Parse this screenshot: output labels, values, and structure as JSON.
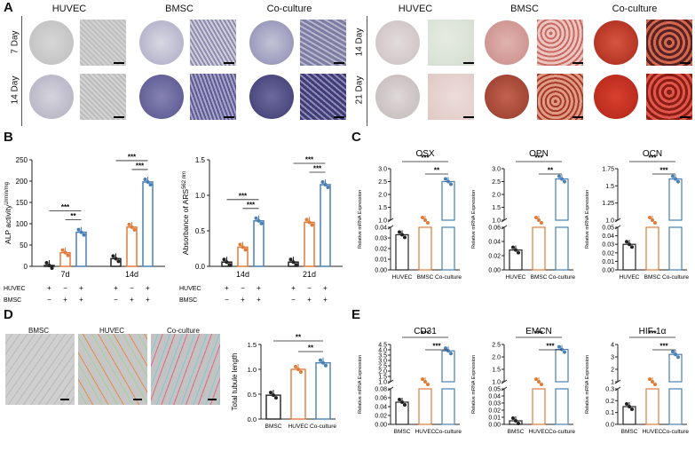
{
  "panel_letters": {
    "a": "A",
    "b": "B",
    "c": "C",
    "d": "D",
    "e": "E"
  },
  "panel_a": {
    "alp_columns": [
      "HUVEC",
      "BMSC",
      "Co-culture"
    ],
    "ars_columns": [
      "HUVEC",
      "BMSC",
      "Co-culture"
    ],
    "alp_rows": [
      "7 Day",
      "14 Day"
    ],
    "ars_rows": [
      "14 Day",
      "21 Day"
    ]
  },
  "panel_d": {
    "image_labels": [
      "BMSC",
      "HUVEC",
      "Co-culture"
    ]
  },
  "colors": {
    "huvec": "#222222",
    "bmsc": "#e07b3a",
    "coculture": "#4a7fb5",
    "alp_stain": "#4b4a8a",
    "ars_stain": "#c0392b"
  },
  "chart_data": [
    {
      "id": "alp",
      "type": "bar",
      "ylabel": "ALP activity",
      "ylabel_sup": "U/min/mg",
      "yticks": [
        "0",
        "50",
        "100",
        "150",
        "200",
        "250"
      ],
      "ylim": [
        0,
        250
      ],
      "groups": [
        "7d",
        "14d"
      ],
      "series": [
        {
          "values": [
            2,
            18
          ]
        },
        {
          "values": [
            32,
            92
          ]
        },
        {
          "values": [
            80,
            198
          ]
        }
      ],
      "significance": [
        {
          "group": 0,
          "pair": [
            0,
            2
          ],
          "label": "***"
        },
        {
          "group": 0,
          "pair": [
            1,
            2
          ],
          "label": "**"
        },
        {
          "group": 1,
          "pair": [
            0,
            2
          ],
          "label": "***"
        },
        {
          "group": 1,
          "pair": [
            1,
            2
          ],
          "label": "***"
        }
      ],
      "condition_rows": [
        {
          "label": "HUVEC",
          "marks": [
            "+",
            "−",
            "+",
            "+",
            "−",
            "+"
          ]
        },
        {
          "label": "BMSC",
          "marks": [
            "−",
            "+",
            "+",
            "−",
            "+",
            "+"
          ]
        }
      ]
    },
    {
      "id": "ars",
      "type": "bar",
      "ylabel": "Absorbance of ARS",
      "ylabel_sup": "562 nm",
      "yticks": [
        "0.0",
        "0.5",
        "1.0",
        "1.5"
      ],
      "ylim": [
        0,
        1.5
      ],
      "groups": [
        "14d",
        "21d"
      ],
      "series": [
        {
          "values": [
            0.06,
            0.06
          ]
        },
        {
          "values": [
            0.27,
            0.62
          ]
        },
        {
          "values": [
            0.64,
            1.15
          ]
        }
      ],
      "significance": [
        {
          "group": 0,
          "pair": [
            0,
            2
          ],
          "label": "***"
        },
        {
          "group": 0,
          "pair": [
            1,
            2
          ],
          "label": "***"
        },
        {
          "group": 1,
          "pair": [
            0,
            2
          ],
          "label": "***"
        },
        {
          "group": 1,
          "pair": [
            1,
            2
          ],
          "label": "***"
        }
      ],
      "condition_rows": [
        {
          "label": "HUVEC",
          "marks": [
            "+",
            "−",
            "+",
            "+",
            "−",
            "+"
          ]
        },
        {
          "label": "BMSC",
          "marks": [
            "−",
            "+",
            "+",
            "−",
            "+",
            "+"
          ]
        }
      ]
    },
    {
      "id": "osx",
      "type": "bar",
      "title": "OSX",
      "ylabel": "Relative mRNA Expression",
      "categories": [
        "HUVEC",
        "BMSC",
        "Co-culture"
      ],
      "values": [
        0.033,
        1.0,
        2.5
      ],
      "upper_ticks": [
        "1.0",
        "1.5",
        "2.0",
        "2.5",
        "3.0"
      ],
      "lower_ticks": [
        "0.00",
        "0.01",
        "0.02",
        "0.03",
        "0.04"
      ],
      "significance": [
        {
          "pair": [
            0,
            2
          ],
          "label": "***"
        },
        {
          "pair": [
            1,
            2
          ],
          "label": "**"
        }
      ]
    },
    {
      "id": "opn",
      "type": "bar",
      "title": "OPN",
      "ylabel": "Relative mRNA Expression",
      "categories": [
        "HUVEC",
        "BMSC",
        "Co-culture"
      ],
      "values": [
        0.028,
        1.0,
        2.6
      ],
      "upper_ticks": [
        "1.0",
        "1.5",
        "2.0",
        "2.5",
        "3.0"
      ],
      "lower_ticks": [
        "0.00",
        "0.02",
        "0.04",
        "0.06"
      ],
      "significance": [
        {
          "pair": [
            0,
            2
          ],
          "label": "***"
        },
        {
          "pair": [
            1,
            2
          ],
          "label": "**"
        }
      ]
    },
    {
      "id": "ocn",
      "type": "bar",
      "title": "OCN",
      "ylabel": "Relative mRNA Expression",
      "categories": [
        "HUVEC",
        "BMSC",
        "Co-culture"
      ],
      "values": [
        0.03,
        1.0,
        1.6
      ],
      "upper_ticks": [
        "1.0",
        "1.25",
        "1.5",
        "1.75"
      ],
      "lower_ticks": [
        "0.00",
        "0.01",
        "0.02",
        "0.03",
        "0.04",
        "0.05"
      ],
      "significance": [
        {
          "pair": [
            0,
            2
          ],
          "label": "***"
        },
        {
          "pair": [
            1,
            2
          ],
          "label": "***"
        }
      ]
    },
    {
      "id": "tubule",
      "type": "bar",
      "ylabel": "Total tubule length",
      "categories": [
        "BMSC",
        "HUVEC",
        "Co-culture"
      ],
      "values": [
        0.48,
        1.0,
        1.13
      ],
      "yticks": [
        "0.0",
        "0.5",
        "1.0",
        "1.5"
      ],
      "ylim": [
        0,
        1.5
      ],
      "significance": [
        {
          "pair": [
            0,
            2
          ],
          "label": "**"
        },
        {
          "pair": [
            1,
            2
          ],
          "label": "**"
        }
      ]
    },
    {
      "id": "cd31",
      "type": "bar",
      "title": "CD31",
      "ylabel": "Relative mRNA Expression",
      "categories": [
        "BMSC",
        "HUVEC",
        "Co-culture"
      ],
      "values": [
        0.05,
        1.0,
        3.9
      ],
      "upper_ticks": [
        "1.0",
        "1.5",
        "2.0",
        "2.5",
        "3.0",
        "3.5",
        "4.0",
        "4.5"
      ],
      "lower_ticks": [
        "0.00",
        "0.02",
        "0.04",
        "0.06",
        "0.08"
      ],
      "significance": [
        {
          "pair": [
            0,
            2
          ],
          "label": "***"
        },
        {
          "pair": [
            1,
            2
          ],
          "label": "***"
        }
      ]
    },
    {
      "id": "emcn",
      "type": "bar",
      "title": "EMCN",
      "ylabel": "Relative mRNA Expression",
      "categories": [
        "BMSC",
        "HUVEC",
        "Co-culture"
      ],
      "values": [
        0.005,
        1.0,
        2.3
      ],
      "upper_ticks": [
        "1.0",
        "1.5",
        "2.0",
        "2.5"
      ],
      "lower_ticks": [
        "0.00",
        "0.01",
        "0.02",
        "0.03",
        "0.04",
        "0.05"
      ],
      "significance": [
        {
          "pair": [
            0,
            2
          ],
          "label": "***"
        },
        {
          "pair": [
            1,
            2
          ],
          "label": "***"
        }
      ]
    },
    {
      "id": "hif",
      "type": "bar",
      "title": "HIF-1α",
      "ylabel": "Relative mRNA Expression",
      "categories": [
        "BMSC",
        "HUVEC",
        "Co-culture"
      ],
      "values": [
        0.15,
        1.0,
        3.2
      ],
      "upper_ticks": [
        "1",
        "2",
        "3",
        "4"
      ],
      "lower_ticks": [
        "0.0",
        "0.1",
        "0.2",
        "0.3"
      ],
      "significance": [
        {
          "pair": [
            0,
            2
          ],
          "label": "***"
        },
        {
          "pair": [
            1,
            2
          ],
          "label": "***"
        }
      ]
    }
  ]
}
